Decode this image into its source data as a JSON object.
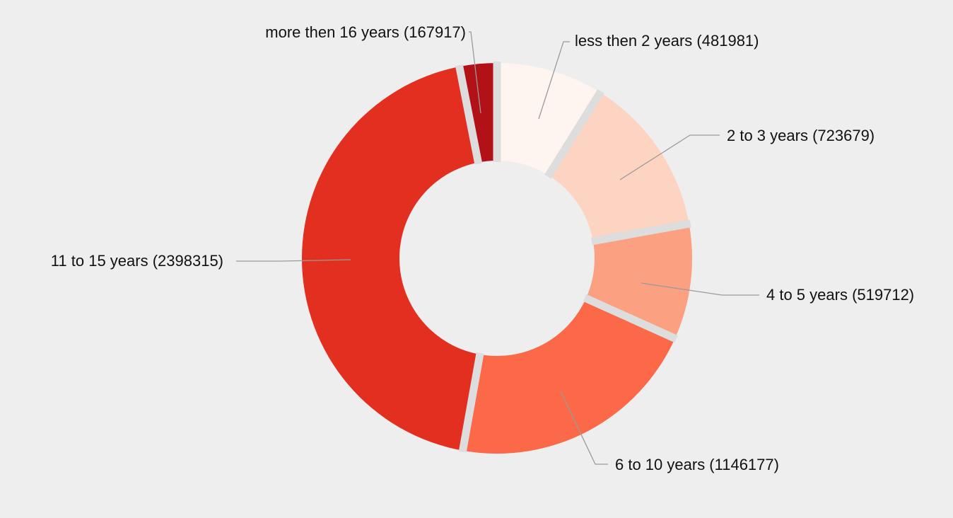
{
  "chart_data": {
    "type": "pie",
    "variant": "donut",
    "categories": [
      "less then 2 years",
      "2 to 3 years",
      "4 to 5 years",
      "6 to 10 years",
      "11 to 15 years",
      "more then 16 years"
    ],
    "values": [
      481981,
      723679,
      519712,
      1146177,
      2398315,
      167917
    ],
    "labels": [
      "less then 2 years (481981)",
      "2 to 3 years (723679)",
      "4 to 5 years (519712)",
      "6 to 10 years (1146177)",
      "11 to 15 years (2398315)",
      "more then 16 years (167917)"
    ],
    "colors": [
      "#fff5f0",
      "#fdd4c2",
      "#fca082",
      "#fb6949",
      "#e32f20",
      "#b11117"
    ],
    "separator_color": "#dddddd",
    "background": "#eeeeee",
    "start_angle": "12 o'clock",
    "direction": "clockwise",
    "legend": "none"
  }
}
